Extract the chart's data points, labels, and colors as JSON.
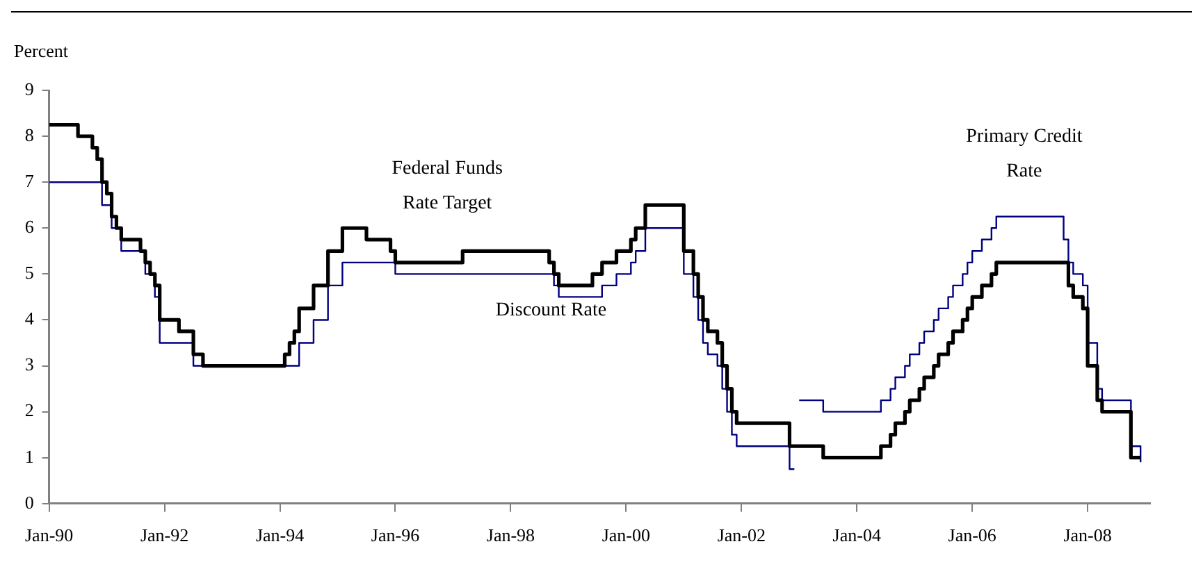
{
  "chart_data": {
    "type": "step",
    "ylabel": "Percent",
    "series": [
      {
        "name": "Federal Funds Rate Target",
        "color": "#000000",
        "x": [
          "1990-01",
          "1990-07",
          "1990-10",
          "1990-11",
          "1990-12",
          "1991-01",
          "1991-02",
          "1991-03",
          "1991-04",
          "1991-08",
          "1991-09",
          "1991-10",
          "1991-11",
          "1991-12",
          "1992-04",
          "1992-07",
          "1992-09",
          "1994-02",
          "1994-03",
          "1994-04",
          "1994-05",
          "1994-08",
          "1994-11",
          "1995-02",
          "1995-07",
          "1995-12",
          "1996-01",
          "1997-03",
          "1998-09",
          "1998-10",
          "1998-11",
          "1999-06",
          "1999-08",
          "1999-11",
          "2000-02",
          "2000-03",
          "2000-05",
          "2001-01",
          "2001-03",
          "2001-04",
          "2001-05",
          "2001-06",
          "2001-08",
          "2001-09",
          "2001-10",
          "2001-11",
          "2001-12",
          "2002-11",
          "2003-06",
          "2004-06",
          "2004-08",
          "2004-09",
          "2004-11",
          "2004-12",
          "2005-02",
          "2005-03",
          "2005-05",
          "2005-06",
          "2005-08",
          "2005-09",
          "2005-11",
          "2005-12",
          "2006-01",
          "2006-03",
          "2006-05",
          "2006-06",
          "2007-09",
          "2007-10",
          "2007-12",
          "2008-01",
          "2008-03",
          "2008-04",
          "2008-10",
          "2008-12"
        ],
        "values": [
          8.25,
          8,
          7.75,
          7.5,
          7,
          6.75,
          6.25,
          6,
          5.75,
          5.5,
          5.25,
          5,
          4.75,
          4,
          3.75,
          3.25,
          3,
          3.25,
          3.5,
          3.75,
          4.25,
          4.75,
          5.5,
          6,
          5.75,
          5.5,
          5.25,
          5.5,
          5.25,
          5,
          4.75,
          5,
          5.25,
          5.5,
          5.75,
          6,
          6.5,
          5.5,
          5,
          4.5,
          4,
          3.75,
          3.5,
          3,
          2.5,
          2,
          1.75,
          1.25,
          1,
          1.25,
          1.5,
          1.75,
          2,
          2.25,
          2.5,
          2.75,
          3,
          3.25,
          3.5,
          3.75,
          4,
          4.25,
          4.5,
          4.75,
          5,
          5.25,
          4.75,
          4.5,
          4.25,
          3,
          2.25,
          2,
          1,
          1
        ]
      },
      {
        "name": "Discount Rate",
        "color": "#000080",
        "x": [
          "1990-01",
          "1990-12",
          "1991-02",
          "1991-04",
          "1991-09",
          "1991-11",
          "1991-12",
          "1992-07",
          "1994-05",
          "1994-08",
          "1994-11",
          "1995-02",
          "1996-01",
          "1998-10",
          "1998-11",
          "1999-08",
          "1999-11",
          "2000-02",
          "2000-03",
          "2000-05",
          "2001-01",
          "2001-03",
          "2001-04",
          "2001-05",
          "2001-06",
          "2001-08",
          "2001-09",
          "2001-10",
          "2001-11",
          "2001-12",
          "2002-11",
          "2002-12"
        ],
        "values": [
          7,
          6.5,
          6,
          5.5,
          5,
          4.5,
          3.5,
          3,
          3.5,
          4,
          4.75,
          5.25,
          5,
          4.75,
          4.5,
          4.75,
          5,
          5.25,
          5.5,
          6,
          5,
          4.5,
          4,
          3.5,
          3.25,
          3,
          2.5,
          2,
          1.5,
          1.25,
          0.75,
          0.75
        ]
      },
      {
        "name": "Primary Credit Rate",
        "color": "#000080",
        "x": [
          "2003-01",
          "2003-06",
          "2004-06",
          "2004-08",
          "2004-09",
          "2004-11",
          "2004-12",
          "2005-02",
          "2005-03",
          "2005-05",
          "2005-06",
          "2005-08",
          "2005-09",
          "2005-11",
          "2005-12",
          "2006-01",
          "2006-03",
          "2006-05",
          "2006-06",
          "2007-08",
          "2007-09",
          "2007-10",
          "2007-12",
          "2008-01",
          "2008-03",
          "2008-04",
          "2008-10",
          "2008-12"
        ],
        "values": [
          2.25,
          2,
          2.25,
          2.5,
          2.75,
          3,
          3.25,
          3.5,
          3.75,
          4,
          4.25,
          4.5,
          4.75,
          5,
          5.25,
          5.5,
          5.75,
          6,
          6.25,
          5.75,
          5.25,
          5,
          4.75,
          3.5,
          2.5,
          2.25,
          1.25,
          0.9
        ]
      }
    ],
    "xlim": [
      "1990-01",
      "2009-02"
    ],
    "xticks": [
      {
        "value": "1990-01",
        "label": "Jan-90"
      },
      {
        "value": "1992-01",
        "label": "Jan-92"
      },
      {
        "value": "1994-01",
        "label": "Jan-94"
      },
      {
        "value": "1996-01",
        "label": "Jan-96"
      },
      {
        "value": "1998-01",
        "label": "Jan-98"
      },
      {
        "value": "2000-01",
        "label": "Jan-00"
      },
      {
        "value": "2002-01",
        "label": "Jan-02"
      },
      {
        "value": "2004-01",
        "label": "Jan-04"
      },
      {
        "value": "2006-01",
        "label": "Jan-06"
      },
      {
        "value": "2008-01",
        "label": "Jan-08"
      }
    ],
    "ylim": [
      0,
      9
    ],
    "yticks": [
      0,
      1,
      2,
      3,
      4,
      5,
      6,
      7,
      8,
      9
    ],
    "grid": false,
    "legend": false
  }
}
